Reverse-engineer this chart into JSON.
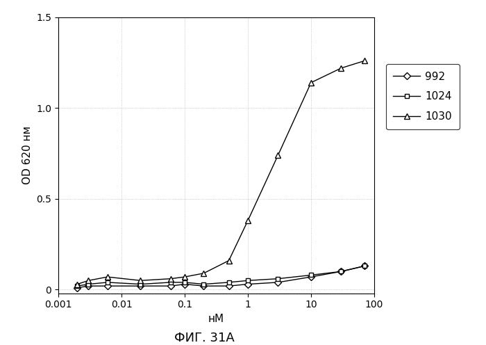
{
  "series": {
    "992": {
      "x": [
        0.002,
        0.003,
        0.006,
        0.02,
        0.06,
        0.1,
        0.2,
        0.5,
        1,
        3,
        10,
        30,
        70
      ],
      "y": [
        0.01,
        0.02,
        0.02,
        0.02,
        0.02,
        0.03,
        0.02,
        0.02,
        0.03,
        0.04,
        0.07,
        0.1,
        0.13
      ],
      "marker": "D",
      "color": "#000000",
      "label": "992",
      "markersize": 5
    },
    "1024": {
      "x": [
        0.002,
        0.003,
        0.006,
        0.02,
        0.06,
        0.1,
        0.2,
        0.5,
        1,
        3,
        10,
        30,
        70
      ],
      "y": [
        0.02,
        0.03,
        0.04,
        0.03,
        0.04,
        0.04,
        0.03,
        0.04,
        0.05,
        0.06,
        0.08,
        0.1,
        0.13
      ],
      "marker": "s",
      "color": "#000000",
      "label": "1024",
      "markersize": 5
    },
    "1030": {
      "x": [
        0.002,
        0.003,
        0.006,
        0.02,
        0.06,
        0.1,
        0.2,
        0.5,
        1,
        3,
        10,
        30,
        70
      ],
      "y": [
        0.03,
        0.05,
        0.07,
        0.05,
        0.06,
        0.07,
        0.09,
        0.16,
        0.38,
        0.74,
        1.14,
        1.22,
        1.26
      ],
      "marker": "^",
      "color": "#000000",
      "label": "1030",
      "markersize": 6
    }
  },
  "xlabel": "нM",
  "ylabel": "OD 620 нм",
  "ylim": [
    -0.02,
    1.5
  ],
  "xlim": [
    0.001,
    100
  ],
  "yticks": [
    0,
    0.5,
    1.0,
    1.5
  ],
  "xticks": [
    0.001,
    0.01,
    0.1,
    1,
    10,
    100
  ],
  "xtick_labels": [
    "0.001",
    "0.01",
    "0.1",
    "1",
    "10",
    "100"
  ],
  "caption": "ФИГ. 31А",
  "background_color": "#ffffff"
}
